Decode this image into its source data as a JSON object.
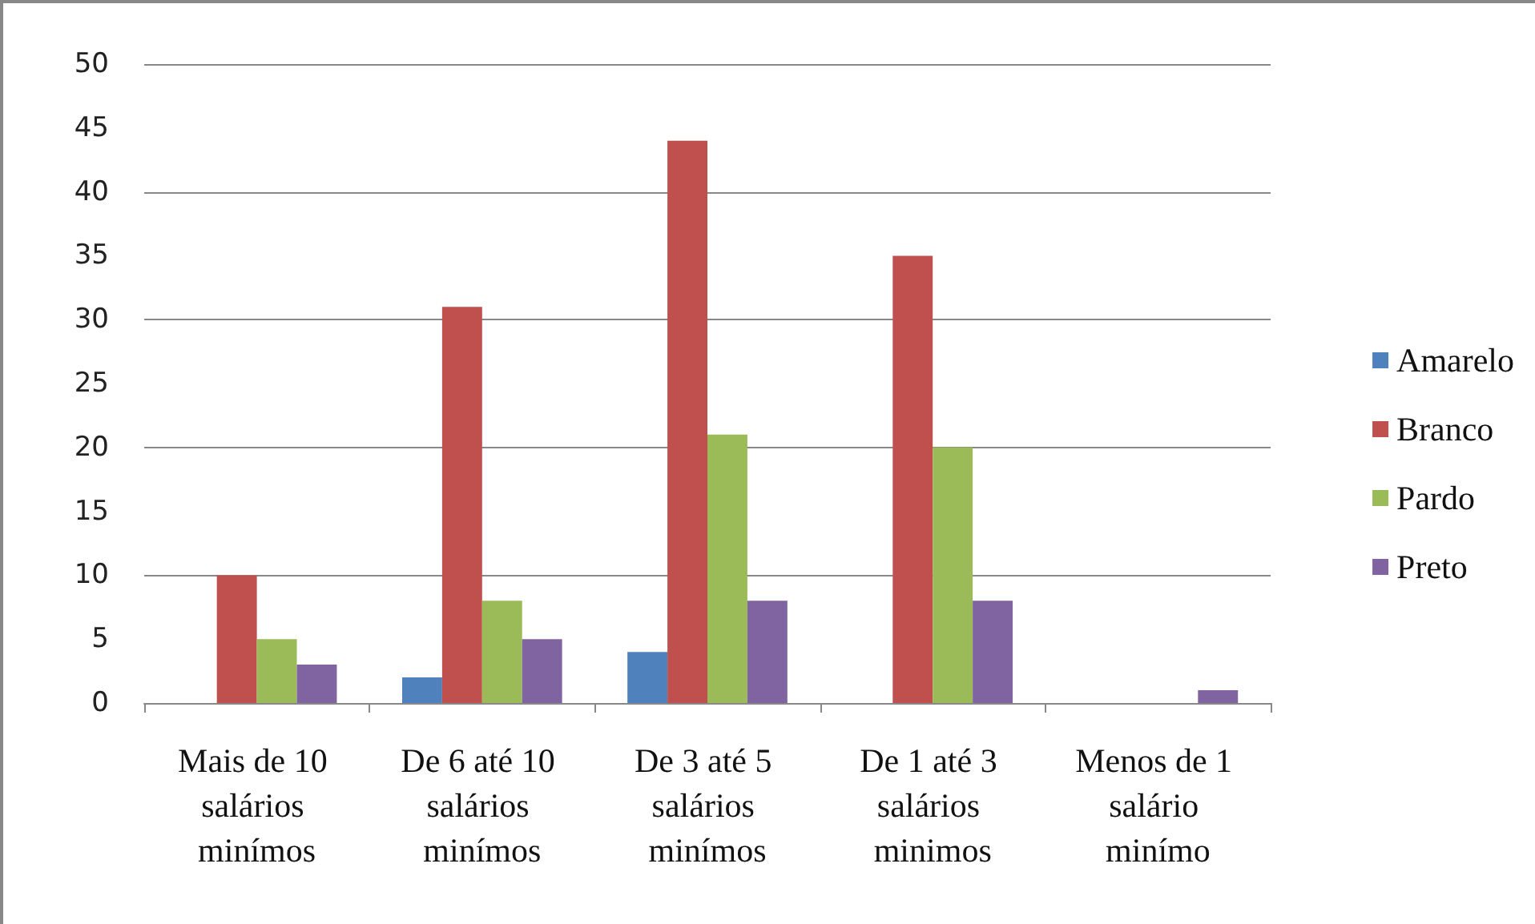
{
  "chart_data": {
    "type": "bar",
    "categories": [
      "Mais de 10 salários minímos",
      "De 6 até 10 salários minímos",
      "De 3 até 5 salários minímos",
      "De 1 até 3 salários minimos",
      "Menos de 1 salário minímo"
    ],
    "series": [
      {
        "name": "Amarelo",
        "color": "#4f81bd",
        "values": [
          0,
          2,
          4,
          0,
          0
        ]
      },
      {
        "name": "Branco",
        "color": "#c0504d",
        "values": [
          10,
          31,
          44,
          35,
          0
        ]
      },
      {
        "name": "Pardo",
        "color": "#9bbb59",
        "values": [
          5,
          8,
          21,
          20,
          0
        ]
      },
      {
        "name": "Preto",
        "color": "#8064a2",
        "values": [
          3,
          5,
          8,
          8,
          1
        ]
      }
    ],
    "ylim": [
      0,
      50
    ],
    "yticks": [
      0,
      5,
      10,
      15,
      20,
      25,
      30,
      35,
      40,
      45,
      50
    ],
    "grid": "y",
    "legend": "right"
  }
}
